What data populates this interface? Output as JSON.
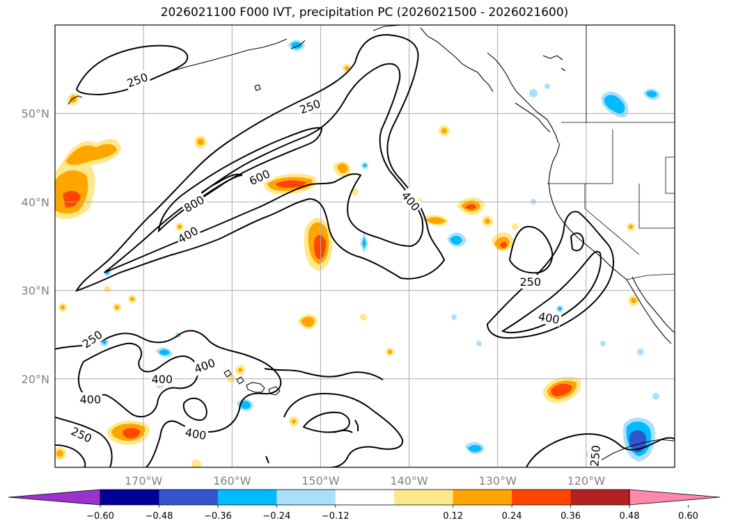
{
  "title": "2026021100 F000 IVT, precipitation PC (2026021500 - 2026021600)",
  "map": {
    "lon_range": [
      -180,
      -110
    ],
    "lat_range": [
      10,
      60
    ],
    "lat_labels": [
      {
        "lat": 50,
        "text": "50°N"
      },
      {
        "lat": 40,
        "text": "40°N"
      },
      {
        "lat": 30,
        "text": "30°N"
      },
      {
        "lat": 20,
        "text": "20°N"
      }
    ],
    "lon_labels": [
      {
        "lon": -170,
        "text": "170°W"
      },
      {
        "lon": -160,
        "text": "160°W"
      },
      {
        "lon": -150,
        "text": "150°W"
      },
      {
        "lon": -140,
        "text": "140°W"
      },
      {
        "lon": -130,
        "text": "130°W"
      },
      {
        "lon": -120,
        "text": "120°W"
      }
    ],
    "grid": true,
    "gridline_lons": [
      -170,
      -160,
      -150,
      -140,
      -130,
      -120
    ],
    "gridline_lats": [
      20,
      30,
      40,
      50
    ],
    "gridline_color": "#aaaaaa",
    "contour_labels": [
      {
        "text": "250",
        "lon": -170.7,
        "lat": 53.8,
        "angle": -20
      },
      {
        "text": "250",
        "lon": -151.2,
        "lat": 50.8,
        "angle": -20
      },
      {
        "text": "600",
        "lon": -156.9,
        "lat": 42.8,
        "angle": -25
      },
      {
        "text": "800",
        "lon": -164.3,
        "lat": 39.8,
        "angle": -30
      },
      {
        "text": "400",
        "lon": -165.0,
        "lat": 36.3,
        "angle": -30
      },
      {
        "text": "400",
        "lon": -139.8,
        "lat": 40.1,
        "angle": 50
      },
      {
        "text": "250",
        "lon": -126.3,
        "lat": 31.0,
        "angle": 0
      },
      {
        "text": "400",
        "lon": -124.2,
        "lat": 26.9,
        "angle": 10
      },
      {
        "text": "250",
        "lon": -175.8,
        "lat": 24.5,
        "angle": -35
      },
      {
        "text": "400",
        "lon": -163.1,
        "lat": 21.5,
        "angle": -20
      },
      {
        "text": "400",
        "lon": -167.9,
        "lat": 20.0,
        "angle": 0
      },
      {
        "text": "400",
        "lon": -176.0,
        "lat": 17.7,
        "angle": 0
      },
      {
        "text": "250",
        "lon": -177.0,
        "lat": 13.7,
        "angle": 25
      },
      {
        "text": "400",
        "lon": -164.1,
        "lat": 13.8,
        "angle": 10
      },
      {
        "text": "250",
        "lon": -119.0,
        "lat": 11.3,
        "angle": -85
      }
    ]
  },
  "colorbar": {
    "ticks": [
      "−0.60",
      "−0.48",
      "−0.36",
      "−0.24",
      "−0.12",
      "0.12",
      "0.24",
      "0.36",
      "0.48",
      "0.60"
    ],
    "colors": [
      "#9933cc",
      "#000099",
      "#3355cc",
      "#00bbff",
      "#aae0fb",
      "#ffffff",
      "#ffe88a",
      "#ffa500",
      "#ff4500",
      "#b22222",
      "#ff88aa"
    ]
  },
  "fill_colors": {
    "yellow": "#ffe88a",
    "orange": "#ffa500",
    "red": "#ff4500",
    "lightblue": "#aae0fb",
    "blue": "#00bbff",
    "darkblue": "#3355cc"
  }
}
